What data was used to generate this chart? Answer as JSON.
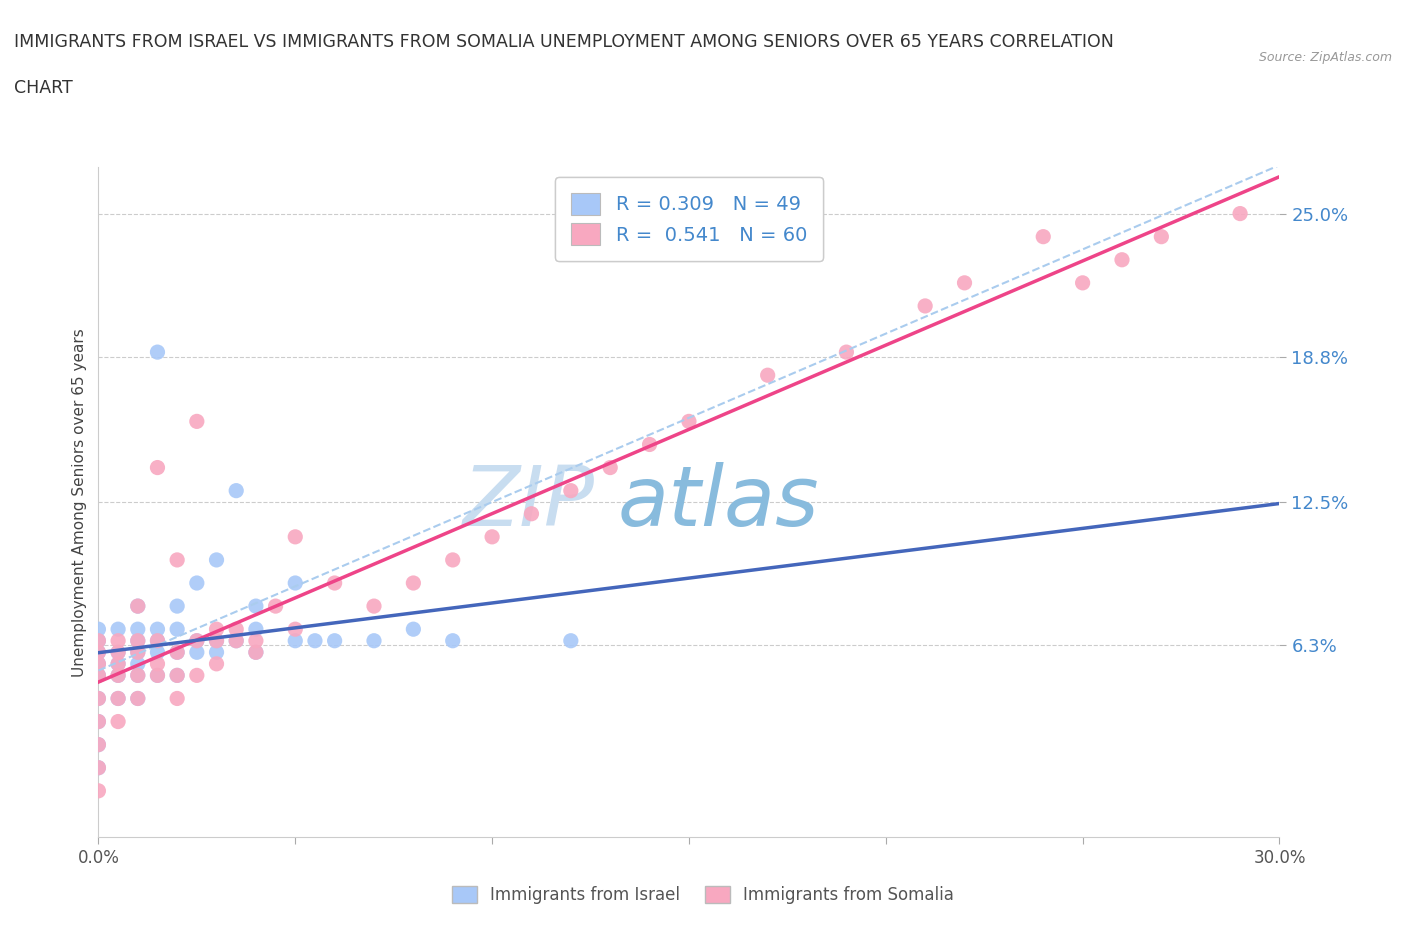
{
  "title_line1": "IMMIGRANTS FROM ISRAEL VS IMMIGRANTS FROM SOMALIA UNEMPLOYMENT AMONG SENIORS OVER 65 YEARS CORRELATION",
  "title_line2": "CHART",
  "source_text": "Source: ZipAtlas.com",
  "ylabel": "Unemployment Among Seniors over 65 years",
  "xmin": 0.0,
  "xmax": 0.3,
  "ymin": -0.02,
  "ymax": 0.27,
  "yticks": [
    0.063,
    0.125,
    0.188,
    0.25
  ],
  "ytick_labels": [
    "6.3%",
    "12.5%",
    "18.8%",
    "25.0%"
  ],
  "xticks": [
    0.0,
    0.05,
    0.1,
    0.15,
    0.2,
    0.25,
    0.3
  ],
  "xtick_labels": [
    "0.0%",
    "",
    "",
    "",
    "",
    "",
    "30.0%"
  ],
  "israel_color": "#a8c8f8",
  "somalia_color": "#f8a8c0",
  "israel_line_color": "#4466bb",
  "somalia_line_color": "#ee4488",
  "israel_line_dash": false,
  "somalia_line_dash": false,
  "dashed_line_color": "#aaccee",
  "R_israel": 0.309,
  "N_israel": 49,
  "R_somalia": 0.541,
  "N_somalia": 60,
  "watermark_text1": "ZIP",
  "watermark_text2": "atlas",
  "watermark_color1": "#c8ddf0",
  "watermark_color2": "#88bbdd",
  "legend_israel": "Immigrants from Israel",
  "legend_somalia": "Immigrants from Somalia",
  "israel_scatter_x": [
    0.0,
    0.0,
    0.0,
    0.0,
    0.0,
    0.0,
    0.0,
    0.0,
    0.0,
    0.005,
    0.005,
    0.005,
    0.005,
    0.005,
    0.01,
    0.01,
    0.01,
    0.01,
    0.01,
    0.01,
    0.01,
    0.015,
    0.015,
    0.015,
    0.015,
    0.015,
    0.02,
    0.02,
    0.02,
    0.02,
    0.025,
    0.025,
    0.025,
    0.03,
    0.03,
    0.03,
    0.035,
    0.035,
    0.04,
    0.04,
    0.04,
    0.05,
    0.05,
    0.055,
    0.06,
    0.07,
    0.08,
    0.09,
    0.12
  ],
  "israel_scatter_y": [
    0.04,
    0.05,
    0.055,
    0.06,
    0.065,
    0.07,
    0.03,
    0.02,
    0.01,
    0.04,
    0.05,
    0.055,
    0.06,
    0.07,
    0.04,
    0.05,
    0.06,
    0.065,
    0.07,
    0.055,
    0.08,
    0.05,
    0.06,
    0.065,
    0.07,
    0.19,
    0.05,
    0.06,
    0.07,
    0.08,
    0.06,
    0.065,
    0.09,
    0.06,
    0.065,
    0.1,
    0.065,
    0.13,
    0.06,
    0.07,
    0.08,
    0.065,
    0.09,
    0.065,
    0.065,
    0.065,
    0.07,
    0.065,
    0.065
  ],
  "somalia_scatter_x": [
    0.0,
    0.0,
    0.0,
    0.0,
    0.0,
    0.0,
    0.0,
    0.0,
    0.0,
    0.005,
    0.005,
    0.005,
    0.005,
    0.005,
    0.005,
    0.01,
    0.01,
    0.01,
    0.01,
    0.01,
    0.015,
    0.015,
    0.015,
    0.015,
    0.02,
    0.02,
    0.02,
    0.02,
    0.025,
    0.025,
    0.025,
    0.03,
    0.03,
    0.03,
    0.035,
    0.035,
    0.04,
    0.04,
    0.045,
    0.05,
    0.05,
    0.06,
    0.07,
    0.08,
    0.09,
    0.1,
    0.11,
    0.12,
    0.13,
    0.14,
    0.15,
    0.17,
    0.19,
    0.21,
    0.22,
    0.24,
    0.25,
    0.26,
    0.27,
    0.29
  ],
  "somalia_scatter_y": [
    0.03,
    0.04,
    0.05,
    0.055,
    0.06,
    0.065,
    0.02,
    0.01,
    0.0,
    0.03,
    0.04,
    0.05,
    0.055,
    0.06,
    0.065,
    0.04,
    0.05,
    0.06,
    0.065,
    0.08,
    0.05,
    0.055,
    0.065,
    0.14,
    0.04,
    0.05,
    0.06,
    0.1,
    0.05,
    0.065,
    0.16,
    0.055,
    0.065,
    0.07,
    0.07,
    0.065,
    0.06,
    0.065,
    0.08,
    0.07,
    0.11,
    0.09,
    0.08,
    0.09,
    0.1,
    0.11,
    0.12,
    0.13,
    0.14,
    0.15,
    0.16,
    0.18,
    0.19,
    0.21,
    0.22,
    0.24,
    0.22,
    0.23,
    0.24,
    0.25
  ]
}
